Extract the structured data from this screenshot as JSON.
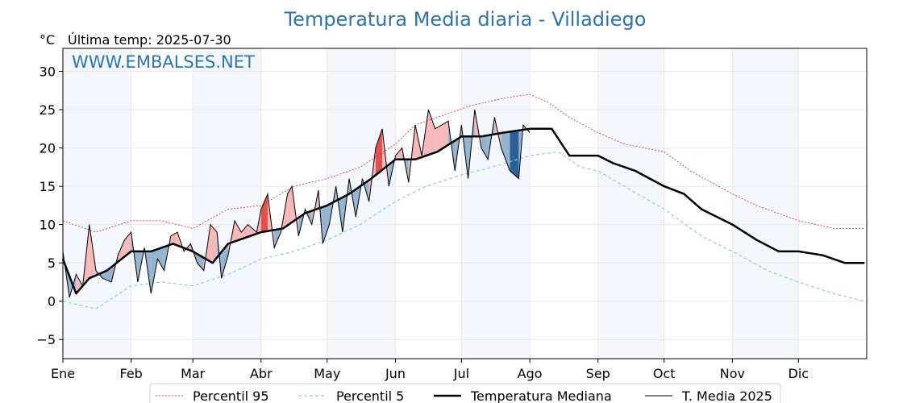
{
  "chart_data": {
    "type": "line",
    "title": "Temperatura Media diaria - Villadiego",
    "ylabel": "°C",
    "subtitle": "Última temp: 2025-07-30",
    "watermark": "WWW.EMBALSES.NET",
    "ylim": [
      -7.5,
      33
    ],
    "yticks": [
      30,
      25,
      20,
      15,
      10,
      5,
      0,
      -5
    ],
    "ytick_labels": [
      "30",
      "25",
      "20",
      "15",
      "10",
      "5",
      "0",
      "−5"
    ],
    "month_labels": [
      "Ene",
      "Feb",
      "Mar",
      "Abr",
      "May",
      "Jun",
      "Jul",
      "Ago",
      "Sep",
      "Oct",
      "Nov",
      "Dic"
    ],
    "month_start_days": [
      0,
      31,
      59,
      90,
      120,
      151,
      181,
      212,
      243,
      273,
      304,
      334
    ],
    "days_in_year": 365,
    "grid": true,
    "legend_position": "bottom",
    "series": [
      {
        "name": "Percentil 95",
        "color": "#e31a1c",
        "style": "dotted",
        "points": [
          [
            0,
            10.5
          ],
          [
            15,
            9
          ],
          [
            31,
            10.5
          ],
          [
            45,
            10.5
          ],
          [
            59,
            9.5
          ],
          [
            75,
            12
          ],
          [
            90,
            12.5
          ],
          [
            105,
            15
          ],
          [
            120,
            16
          ],
          [
            135,
            17.5
          ],
          [
            151,
            20.5
          ],
          [
            160,
            23
          ],
          [
            175,
            24.5
          ],
          [
            185,
            25.5
          ],
          [
            200,
            26.5
          ],
          [
            212,
            27
          ],
          [
            220,
            26
          ],
          [
            230,
            24
          ],
          [
            243,
            22
          ],
          [
            255,
            20.5
          ],
          [
            273,
            19.5
          ],
          [
            285,
            17
          ],
          [
            304,
            14
          ],
          [
            315,
            12.5
          ],
          [
            334,
            10.5
          ],
          [
            350,
            9.5
          ],
          [
            364,
            9.5
          ]
        ]
      },
      {
        "name": "Percentil 5",
        "color": "#8ecae0",
        "style": "dashed",
        "points": [
          [
            0,
            0
          ],
          [
            15,
            -1
          ],
          [
            31,
            2
          ],
          [
            45,
            2.5
          ],
          [
            59,
            2
          ],
          [
            75,
            3.5
          ],
          [
            90,
            5.5
          ],
          [
            105,
            6.5
          ],
          [
            120,
            8
          ],
          [
            135,
            10
          ],
          [
            151,
            13
          ],
          [
            165,
            15
          ],
          [
            181,
            16.5
          ],
          [
            195,
            17.5
          ],
          [
            212,
            19
          ],
          [
            225,
            19.5
          ],
          [
            235,
            17.5
          ],
          [
            243,
            17
          ],
          [
            258,
            14.5
          ],
          [
            273,
            12
          ],
          [
            290,
            8.5
          ],
          [
            304,
            6.5
          ],
          [
            320,
            4
          ],
          [
            334,
            2.5
          ],
          [
            350,
            1
          ],
          [
            364,
            0
          ]
        ]
      },
      {
        "name": "Temperatura Mediana",
        "color": "#000000",
        "style": "thick",
        "points": [
          [
            0,
            5.5
          ],
          [
            6,
            1
          ],
          [
            12,
            3
          ],
          [
            20,
            4
          ],
          [
            31,
            6.5
          ],
          [
            40,
            6.5
          ],
          [
            50,
            7.5
          ],
          [
            59,
            6.5
          ],
          [
            68,
            5
          ],
          [
            75,
            7.5
          ],
          [
            90,
            9
          ],
          [
            100,
            9.5
          ],
          [
            110,
            11.5
          ],
          [
            120,
            12.5
          ],
          [
            130,
            14
          ],
          [
            140,
            16
          ],
          [
            151,
            18.5
          ],
          [
            160,
            18.5
          ],
          [
            170,
            19.5
          ],
          [
            181,
            21.5
          ],
          [
            190,
            21.5
          ],
          [
            200,
            22
          ],
          [
            212,
            22.5
          ],
          [
            222,
            22.5
          ],
          [
            230,
            19
          ],
          [
            243,
            19
          ],
          [
            250,
            18
          ],
          [
            260,
            17
          ],
          [
            273,
            15
          ],
          [
            282,
            14
          ],
          [
            290,
            12
          ],
          [
            304,
            10
          ],
          [
            315,
            8
          ],
          [
            325,
            6.5
          ],
          [
            334,
            6.5
          ],
          [
            345,
            6
          ],
          [
            355,
            5
          ],
          [
            364,
            5
          ]
        ]
      },
      {
        "name": "T. Media 2025",
        "color": "#000000",
        "style": "thin",
        "points": [
          [
            0,
            6.5
          ],
          [
            3,
            0.5
          ],
          [
            6,
            3.5
          ],
          [
            9,
            2
          ],
          [
            12,
            10
          ],
          [
            15,
            4
          ],
          [
            18,
            3
          ],
          [
            22,
            2.5
          ],
          [
            25,
            6
          ],
          [
            28,
            8
          ],
          [
            31,
            9
          ],
          [
            34,
            2.5
          ],
          [
            37,
            7
          ],
          [
            40,
            1
          ],
          [
            43,
            5.5
          ],
          [
            46,
            4
          ],
          [
            49,
            8.5
          ],
          [
            52,
            9
          ],
          [
            55,
            6.5
          ],
          [
            58,
            7.5
          ],
          [
            61,
            5
          ],
          [
            64,
            4
          ],
          [
            67,
            10
          ],
          [
            70,
            9
          ],
          [
            72,
            3
          ],
          [
            75,
            6
          ],
          [
            78,
            10.5
          ],
          [
            81,
            9
          ],
          [
            84,
            10
          ],
          [
            88,
            9
          ],
          [
            90,
            12
          ],
          [
            93,
            14
          ],
          [
            96,
            7
          ],
          [
            99,
            9
          ],
          [
            102,
            14
          ],
          [
            104,
            15
          ],
          [
            107,
            8.5
          ],
          [
            110,
            12
          ],
          [
            113,
            10
          ],
          [
            116,
            14.5
          ],
          [
            118,
            7.5
          ],
          [
            121,
            10
          ],
          [
            124,
            15
          ],
          [
            127,
            9
          ],
          [
            130,
            16
          ],
          [
            133,
            11
          ],
          [
            136,
            16
          ],
          [
            139,
            13
          ],
          [
            142,
            20
          ],
          [
            145,
            22.5
          ],
          [
            148,
            15
          ],
          [
            151,
            19
          ],
          [
            154,
            20
          ],
          [
            157,
            15.5
          ],
          [
            160,
            23
          ],
          [
            163,
            19
          ],
          [
            166,
            25
          ],
          [
            169,
            22.5
          ],
          [
            172,
            23
          ],
          [
            175,
            23.5
          ],
          [
            178,
            17
          ],
          [
            181,
            23
          ],
          [
            184,
            16
          ],
          [
            187,
            25
          ],
          [
            190,
            20
          ],
          [
            193,
            18.5
          ],
          [
            196,
            24
          ],
          [
            199,
            20
          ],
          [
            203,
            17
          ],
          [
            207,
            16
          ],
          [
            209,
            23
          ],
          [
            212,
            22
          ]
        ]
      }
    ]
  }
}
